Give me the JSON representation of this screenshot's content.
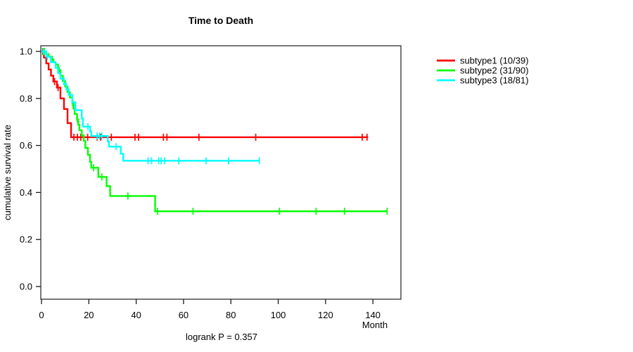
{
  "title": "Time to Death",
  "footer": "logrank P = 0.357",
  "chart_data": {
    "type": "line",
    "subtype": "kaplan-meier-survival-step",
    "title": "Time to Death",
    "xlabel": "Month",
    "ylabel": "cumulative survival rate",
    "annotation": "logrank P = 0.357",
    "x_ticks": [
      0,
      20,
      40,
      60,
      80,
      100,
      120,
      140
    ],
    "y_tick_labels": [
      "0.0",
      "0.2",
      "0.4",
      "0.6",
      "0.8",
      "1.0"
    ],
    "y_ticks": [
      0.0,
      0.2,
      0.4,
      0.6,
      0.8,
      1.0
    ],
    "xlim": [
      0,
      146
    ],
    "ylim": [
      0,
      1
    ],
    "grid": false,
    "legend_position": "right-outside",
    "frame_color": "#3f3f3f",
    "tick_color": "#1a1a1a",
    "series": [
      {
        "name": "subtype1 (10/39)",
        "color": "#ff0000",
        "steps": [
          [
            0,
            1.0
          ],
          [
            1,
            0.974
          ],
          [
            2,
            0.949
          ],
          [
            3,
            0.923
          ],
          [
            4,
            0.897
          ],
          [
            5,
            0.872
          ],
          [
            6.5,
            0.846
          ],
          [
            8,
            0.8
          ],
          [
            9.5,
            0.755
          ],
          [
            11,
            0.695
          ],
          [
            12.5,
            0.635
          ],
          [
            138,
            0.635
          ]
        ],
        "censored": [
          [
            0.5,
            1.0
          ],
          [
            5.5,
            0.872
          ],
          [
            7,
            0.846
          ],
          [
            13.7,
            0.635
          ],
          [
            15.2,
            0.635
          ],
          [
            16.6,
            0.635
          ],
          [
            19.5,
            0.635
          ],
          [
            23.5,
            0.635
          ],
          [
            25,
            0.635
          ],
          [
            29.5,
            0.635
          ],
          [
            39.5,
            0.635
          ],
          [
            41,
            0.635
          ],
          [
            51.5,
            0.635
          ],
          [
            53,
            0.635
          ],
          [
            66.5,
            0.635
          ],
          [
            90.5,
            0.635
          ],
          [
            135.5,
            0.635
          ],
          [
            137.5,
            0.635
          ]
        ]
      },
      {
        "name": "subtype2 (31/90)",
        "color": "#00ff00",
        "steps": [
          [
            0,
            1.0
          ],
          [
            2,
            0.989
          ],
          [
            3,
            0.978
          ],
          [
            4,
            0.966
          ],
          [
            5,
            0.955
          ],
          [
            6,
            0.944
          ],
          [
            7,
            0.92
          ],
          [
            8,
            0.897
          ],
          [
            9,
            0.874
          ],
          [
            10,
            0.85
          ],
          [
            11,
            0.827
          ],
          [
            12,
            0.804
          ],
          [
            13,
            0.78
          ],
          [
            13.5,
            0.757
          ],
          [
            14,
            0.734
          ],
          [
            15,
            0.71
          ],
          [
            15.5,
            0.688
          ],
          [
            16,
            0.665
          ],
          [
            17,
            0.643
          ],
          [
            17.8,
            0.62
          ],
          [
            18.5,
            0.59
          ],
          [
            19.6,
            0.56
          ],
          [
            20.5,
            0.53
          ],
          [
            21,
            0.505
          ],
          [
            24,
            0.466
          ],
          [
            27.5,
            0.427
          ],
          [
            29,
            0.385
          ],
          [
            48,
            0.32
          ],
          [
            146,
            0.32
          ]
        ],
        "censored": [
          [
            0.7,
            1.0
          ],
          [
            1.3,
            1.0
          ],
          [
            4.5,
            0.966
          ],
          [
            7.5,
            0.92
          ],
          [
            9.5,
            0.874
          ],
          [
            13.2,
            0.78
          ],
          [
            15.2,
            0.71
          ],
          [
            22,
            0.505
          ],
          [
            25.5,
            0.466
          ],
          [
            36.5,
            0.385
          ],
          [
            49,
            0.32
          ],
          [
            64,
            0.32
          ],
          [
            100.5,
            0.32
          ],
          [
            116,
            0.32
          ],
          [
            128,
            0.32
          ],
          [
            146,
            0.32
          ]
        ]
      },
      {
        "name": "subtype3 (18/81)",
        "color": "#00ffff",
        "steps": [
          [
            0,
            1.0
          ],
          [
            2,
            0.977
          ],
          [
            4,
            0.954
          ],
          [
            6,
            0.93
          ],
          [
            7,
            0.907
          ],
          [
            8,
            0.884
          ],
          [
            9.5,
            0.861
          ],
          [
            10.5,
            0.838
          ],
          [
            11.5,
            0.815
          ],
          [
            13,
            0.783
          ],
          [
            14.3,
            0.75
          ],
          [
            17,
            0.715
          ],
          [
            17.5,
            0.68
          ],
          [
            20.5,
            0.66
          ],
          [
            21,
            0.64
          ],
          [
            28,
            0.617
          ],
          [
            28.5,
            0.595
          ],
          [
            33.5,
            0.565
          ],
          [
            34.5,
            0.535
          ],
          [
            92,
            0.535
          ]
        ],
        "censored": [
          [
            1,
            1.0
          ],
          [
            2.5,
            0.977
          ],
          [
            19.6,
            0.68
          ],
          [
            23.5,
            0.64
          ],
          [
            24.5,
            0.64
          ],
          [
            25.5,
            0.64
          ],
          [
            31.5,
            0.595
          ],
          [
            45,
            0.535
          ],
          [
            46.5,
            0.535
          ],
          [
            49.5,
            0.535
          ],
          [
            50.5,
            0.535
          ],
          [
            52,
            0.535
          ],
          [
            58,
            0.535
          ],
          [
            69.5,
            0.535
          ],
          [
            79,
            0.535
          ],
          [
            92,
            0.535
          ]
        ]
      }
    ]
  }
}
